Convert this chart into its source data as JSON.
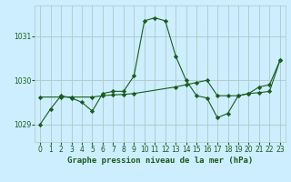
{
  "title": "Graphe pression niveau de la mer (hPa)",
  "background_color": "#cceeff",
  "line_color": "#1a5c1a",
  "grid_color": "#b0c8c8",
  "xlim": [
    -0.5,
    23.5
  ],
  "ylim": [
    1028.6,
    1031.7
  ],
  "yticks": [
    1029,
    1030,
    1031
  ],
  "xticks": [
    0,
    1,
    2,
    3,
    4,
    5,
    6,
    7,
    8,
    9,
    10,
    11,
    12,
    13,
    14,
    15,
    16,
    17,
    18,
    19,
    20,
    21,
    22,
    23
  ],
  "series1_x": [
    0,
    1,
    2,
    3,
    4,
    5,
    6,
    7,
    8,
    9,
    10,
    11,
    12,
    13,
    14,
    15,
    16,
    17,
    18,
    19,
    20,
    21,
    22,
    23
  ],
  "series1_y": [
    1029.0,
    1029.35,
    1029.65,
    1029.6,
    1029.5,
    1029.3,
    1029.7,
    1029.75,
    1029.75,
    1030.1,
    1031.35,
    1031.42,
    1031.35,
    1030.55,
    1030.0,
    1029.65,
    1029.6,
    1029.15,
    1029.25,
    1029.65,
    1029.7,
    1029.85,
    1029.9,
    1030.45
  ],
  "series2_x": [
    0,
    2,
    3,
    5,
    6,
    7,
    8,
    9,
    13,
    14,
    15,
    16,
    17,
    18,
    19,
    20,
    21,
    22,
    23
  ],
  "series2_y": [
    1029.62,
    1029.62,
    1029.62,
    1029.62,
    1029.65,
    1029.67,
    1029.68,
    1029.7,
    1029.85,
    1029.9,
    1029.95,
    1030.0,
    1029.65,
    1029.65,
    1029.65,
    1029.7,
    1029.72,
    1029.75,
    1030.45
  ],
  "title_fontsize": 6.5,
  "tick_fontsize": 5.5
}
